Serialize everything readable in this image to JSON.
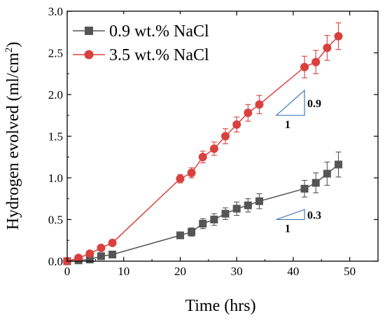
{
  "chart_data": {
    "type": "line",
    "title": "",
    "xlabel": "Time (hrs)",
    "ylabel_main": "Hydrogen evolved (ml/cm",
    "ylabel_sup": "2",
    "ylabel_close": ")",
    "xlim": [
      0,
      55
    ],
    "ylim": [
      0,
      3.0
    ],
    "xticks": [
      0,
      10,
      20,
      30,
      40,
      50
    ],
    "yticks": [
      "0.0",
      "0.5",
      "1.0",
      "1.5",
      "2.0",
      "2.5",
      "3.0"
    ],
    "grid": false,
    "legend_position": "top-left",
    "series": [
      {
        "name": "0.9 wt.% NaCl",
        "color": "#555555",
        "marker": "square",
        "x": [
          0,
          2,
          4,
          6,
          8,
          20,
          22,
          24,
          26,
          28,
          30,
          32,
          34,
          42,
          44,
          46,
          48
        ],
        "y": [
          0.0,
          0.01,
          0.02,
          0.06,
          0.08,
          0.31,
          0.35,
          0.45,
          0.5,
          0.57,
          0.63,
          0.67,
          0.72,
          0.87,
          0.94,
          1.05,
          1.16
        ],
        "err": [
          0.01,
          0.01,
          0.01,
          0.02,
          0.02,
          0.04,
          0.05,
          0.06,
          0.07,
          0.07,
          0.08,
          0.08,
          0.09,
          0.1,
          0.12,
          0.14,
          0.15
        ]
      },
      {
        "name": "3.5 wt.% NaCl",
        "color": "#d9413e",
        "marker": "circle",
        "x": [
          0,
          2,
          4,
          6,
          8,
          20,
          22,
          24,
          26,
          28,
          30,
          32,
          34,
          42,
          44,
          46,
          48
        ],
        "y": [
          0.0,
          0.04,
          0.09,
          0.16,
          0.22,
          0.99,
          1.06,
          1.25,
          1.35,
          1.5,
          1.64,
          1.78,
          1.88,
          2.33,
          2.39,
          2.56,
          2.7
        ],
        "err": [
          0.01,
          0.02,
          0.02,
          0.03,
          0.03,
          0.05,
          0.06,
          0.07,
          0.08,
          0.09,
          0.09,
          0.1,
          0.11,
          0.13,
          0.14,
          0.15,
          0.16
        ]
      }
    ],
    "annotations": [
      {
        "label": "0.9",
        "run_label": "1",
        "x": [
          37,
          42
        ],
        "y": [
          1.75,
          2.05
        ]
      },
      {
        "label": "0.3",
        "run_label": "1",
        "x": [
          37,
          42
        ],
        "y": [
          0.5,
          0.62
        ]
      }
    ]
  }
}
